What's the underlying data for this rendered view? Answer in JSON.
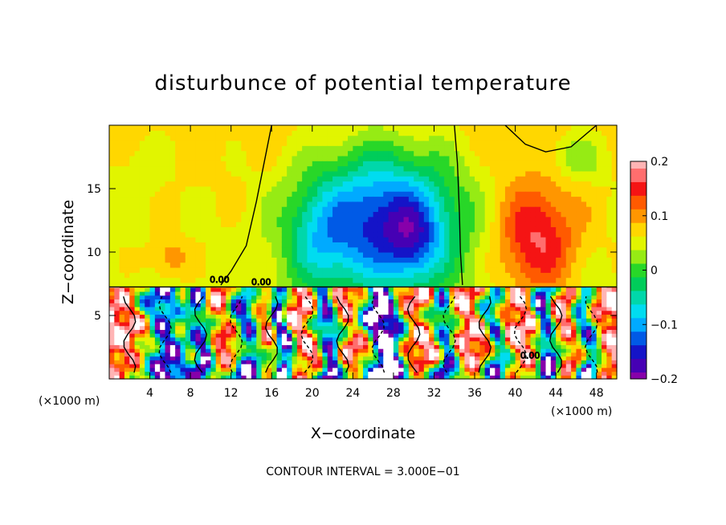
{
  "chart_data": {
    "type": "heatmap",
    "title": "disturbunce of potential temperature",
    "xlabel": "X−coordinate",
    "ylabel": "Z−coordinate",
    "x_unit_left": "(×1000 m)",
    "x_unit_right": "(×1000 m)",
    "xlim": [
      0,
      50
    ],
    "ylim": [
      0,
      20
    ],
    "x_ticks": [
      4,
      8,
      12,
      16,
      20,
      24,
      28,
      32,
      36,
      40,
      44,
      48
    ],
    "y_ticks": [
      5,
      10,
      15
    ],
    "colorbar": {
      "range": [
        -0.2,
        0.2
      ],
      "tick_values": [
        0.2,
        0.1,
        0,
        -0.1,
        -0.2
      ],
      "tick_labels": [
        "0.2",
        "0.1",
        "0",
        "−0.1",
        "−0.2"
      ]
    },
    "contour_interval_text": "CONTOUR INTERVAL = 3.000E−01",
    "contour_labels": [
      "0.00",
      "0.00",
      "0.00"
    ],
    "upper_field": {
      "background": 0.06,
      "blobs": [
        {
          "x": 27,
          "z": 12.5,
          "amp": -0.21,
          "sx": 7.5,
          "sz": 5.5
        },
        {
          "x": 20.5,
          "z": 11,
          "amp": -0.06,
          "sx": 3,
          "sz": 4
        },
        {
          "x": 30,
          "z": 11,
          "amp": -0.07,
          "sx": 2.5,
          "sz": 3
        },
        {
          "x": 42,
          "z": 11,
          "amp": 0.11,
          "sx": 4,
          "sz": 4.5
        },
        {
          "x": 6,
          "z": 9.5,
          "amp": 0.05,
          "sx": 2,
          "sz": 1.5
        },
        {
          "x": 46,
          "z": 17.5,
          "amp": -0.05,
          "sx": 3,
          "sz": 2
        },
        {
          "x": 3,
          "z": 17,
          "amp": -0.02,
          "sx": 3,
          "sz": 3
        }
      ]
    },
    "lower_field": {
      "background": 0.2,
      "bands": [
        {
          "x": 5.5,
          "amp": -0.35,
          "w": 2.2
        },
        {
          "x": 9,
          "amp": -0.3,
          "w": 1.2
        },
        {
          "x": 13.5,
          "amp": -0.32,
          "w": 1.5
        },
        {
          "x": 17,
          "amp": -0.38,
          "w": 0.9
        },
        {
          "x": 21.5,
          "amp": -0.35,
          "w": 1.2
        },
        {
          "x": 27,
          "amp": -0.45,
          "w": 2
        },
        {
          "x": 33,
          "amp": -0.3,
          "w": 1.2
        },
        {
          "x": 38,
          "amp": -0.28,
          "w": 1.2
        },
        {
          "x": 43,
          "amp": -0.35,
          "w": 1.1
        },
        {
          "x": 47,
          "amp": -0.3,
          "w": 1.2
        }
      ]
    }
  }
}
